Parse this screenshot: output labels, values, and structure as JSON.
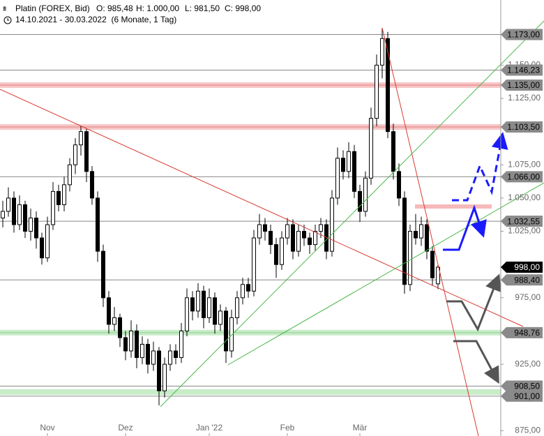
{
  "chart_data": {
    "type": "candlestick",
    "title": "Platin (FOREX, Bid)",
    "ohlc_text": [
      "O: 985,48",
      "H: 1.000,00",
      "L: 981,50",
      "C: 998,00"
    ],
    "subtitle": "14.10.2021 - 30.03.2022  (6 Monate, 1 Tag)",
    "up_color": "#ffffff",
    "down_color": "#000000",
    "categories": [
      null,
      null,
      null,
      null,
      null,
      null,
      null,
      null,
      "Nov",
      null,
      null,
      null,
      null,
      null,
      null,
      null,
      null,
      null,
      null,
      null,
      null,
      null,
      "Dez",
      null,
      null,
      null,
      null,
      null,
      null,
      null,
      null,
      null,
      null,
      null,
      null,
      null,
      null,
      "Jan '22",
      null,
      null,
      null,
      null,
      null,
      null,
      null,
      null,
      null,
      null,
      null,
      null,
      null,
      "Feb",
      null,
      null,
      null,
      null,
      null,
      null,
      null,
      null,
      null,
      null,
      null,
      null,
      "Mär",
      null,
      null,
      null,
      null,
      null,
      null,
      null,
      null,
      null,
      null,
      null,
      null,
      null,
      null
    ],
    "candles": [
      [
        1035,
        1048,
        1028,
        1040
      ],
      [
        1040,
        1058,
        1036,
        1050
      ],
      [
        1050,
        1055,
        1024,
        1030
      ],
      [
        1030,
        1052,
        1026,
        1045
      ],
      [
        1045,
        1048,
        1020,
        1025
      ],
      [
        1025,
        1042,
        1018,
        1035
      ],
      [
        1035,
        1040,
        1012,
        1020
      ],
      [
        1020,
        1024,
        1000,
        1005
      ],
      [
        1005,
        1036,
        1002,
        1030
      ],
      [
        1030,
        1062,
        1026,
        1055
      ],
      [
        1055,
        1060,
        1040,
        1045
      ],
      [
        1045,
        1066,
        1040,
        1060
      ],
      [
        1060,
        1080,
        1055,
        1075
      ],
      [
        1075,
        1095,
        1068,
        1090
      ],
      [
        1090,
        1104,
        1082,
        1100
      ],
      [
        1100,
        1102,
        1062,
        1070
      ],
      [
        1070,
        1074,
        1045,
        1050
      ],
      [
        1050,
        1055,
        1002,
        1010
      ],
      [
        1010,
        1015,
        968,
        975
      ],
      [
        975,
        980,
        948,
        955
      ],
      [
        955,
        968,
        950,
        960
      ],
      [
        960,
        963,
        938,
        945
      ],
      [
        945,
        950,
        928,
        935
      ],
      [
        935,
        958,
        930,
        950
      ],
      [
        950,
        955,
        922,
        930
      ],
      [
        930,
        946,
        925,
        940
      ],
      [
        940,
        944,
        918,
        925
      ],
      [
        925,
        942,
        920,
        935
      ],
      [
        935,
        938,
        894,
        905
      ],
      [
        905,
        930,
        900,
        925
      ],
      [
        925,
        940,
        920,
        935
      ],
      [
        935,
        940,
        925,
        930
      ],
      [
        930,
        956,
        926,
        950
      ],
      [
        950,
        982,
        946,
        975
      ],
      [
        975,
        980,
        958,
        965
      ],
      [
        965,
        986,
        960,
        980
      ],
      [
        980,
        984,
        952,
        960
      ],
      [
        960,
        982,
        956,
        975
      ],
      [
        975,
        979,
        948,
        955
      ],
      [
        955,
        970,
        950,
        965
      ],
      [
        965,
        968,
        926,
        935
      ],
      [
        935,
        966,
        930,
        960
      ],
      [
        960,
        980,
        955,
        975
      ],
      [
        975,
        990,
        970,
        985
      ],
      [
        985,
        990,
        975,
        980
      ],
      [
        980,
        1026,
        976,
        1020
      ],
      [
        1020,
        1038,
        1015,
        1030
      ],
      [
        1030,
        1035,
        1018,
        1025
      ],
      [
        1025,
        1030,
        1008,
        1015
      ],
      [
        1015,
        1020,
        990,
        1000
      ],
      [
        1000,
        1025,
        996,
        1020
      ],
      [
        1020,
        1035,
        1015,
        1030
      ],
      [
        1030,
        1034,
        1004,
        1010
      ],
      [
        1010,
        1030,
        1006,
        1025
      ],
      [
        1025,
        1030,
        1014,
        1020
      ],
      [
        1020,
        1024,
        1008,
        1015
      ],
      [
        1015,
        1030,
        1010,
        1025
      ],
      [
        1025,
        1035,
        1020,
        1030
      ],
      [
        1030,
        1034,
        1004,
        1010
      ],
      [
        1010,
        1056,
        1006,
        1050
      ],
      [
        1050,
        1088,
        1045,
        1080
      ],
      [
        1080,
        1086,
        1064,
        1070
      ],
      [
        1070,
        1092,
        1065,
        1085
      ],
      [
        1085,
        1090,
        1050,
        1055
      ],
      [
        1055,
        1060,
        1032,
        1040
      ],
      [
        1040,
        1070,
        1036,
        1065
      ],
      [
        1065,
        1118,
        1060,
        1110
      ],
      [
        1110,
        1158,
        1104,
        1150
      ],
      [
        1150,
        1178,
        1140,
        1170
      ],
      [
        1170,
        1175,
        1095,
        1100
      ],
      [
        1100,
        1106,
        1064,
        1070
      ],
      [
        1070,
        1076,
        1044,
        1050
      ],
      [
        1050,
        1055,
        978,
        985
      ],
      [
        985,
        1030,
        980,
        1025
      ],
      [
        1025,
        1038,
        1015,
        1020
      ],
      [
        1020,
        1036,
        1014,
        1030
      ],
      [
        1030,
        1034,
        1004,
        1010
      ],
      [
        1010,
        1014,
        984,
        990
      ],
      [
        985.48,
        1000,
        981.5,
        998
      ]
    ],
    "ylim": [
      871,
      1199
    ],
    "yticks": [
      {
        "value": 875,
        "label": "875,00"
      },
      {
        "value": 925,
        "label": "925,00"
      },
      {
        "value": 975,
        "label": "975,00"
      },
      {
        "value": 1025,
        "label": "1.025,00"
      },
      {
        "value": 1050,
        "label": "1.050,00"
      },
      {
        "value": 1075,
        "label": "1.075,00"
      },
      {
        "value": 1125,
        "label": "1.125,00"
      },
      {
        "value": 1150,
        "label": "1.150,00"
      }
    ],
    "levels": [
      {
        "value": 1173,
        "label": "1.173,00",
        "style": "grey"
      },
      {
        "value": 1146.23,
        "label": "1.146,23",
        "style": "grey"
      },
      {
        "value": 1135,
        "label": "1.135,00",
        "style": "pink"
      },
      {
        "value": 1103.5,
        "label": "1.103,50",
        "style": "pink"
      },
      {
        "value": 1066,
        "label": "1.066,00",
        "style": "grey"
      },
      {
        "value": 1032.55,
        "label": "1.032,55",
        "style": "grey"
      },
      {
        "value": 998,
        "label": "998,00",
        "style": "current"
      },
      {
        "value": 988.4,
        "label": "988,40",
        "style": "grey"
      },
      {
        "value": 948.76,
        "label": "948,76",
        "style": "green"
      },
      {
        "value": 908.5,
        "label": "908,50",
        "style": "grey"
      },
      {
        "value": 901,
        "label": "901,00",
        "style": "grey"
      }
    ]
  }
}
